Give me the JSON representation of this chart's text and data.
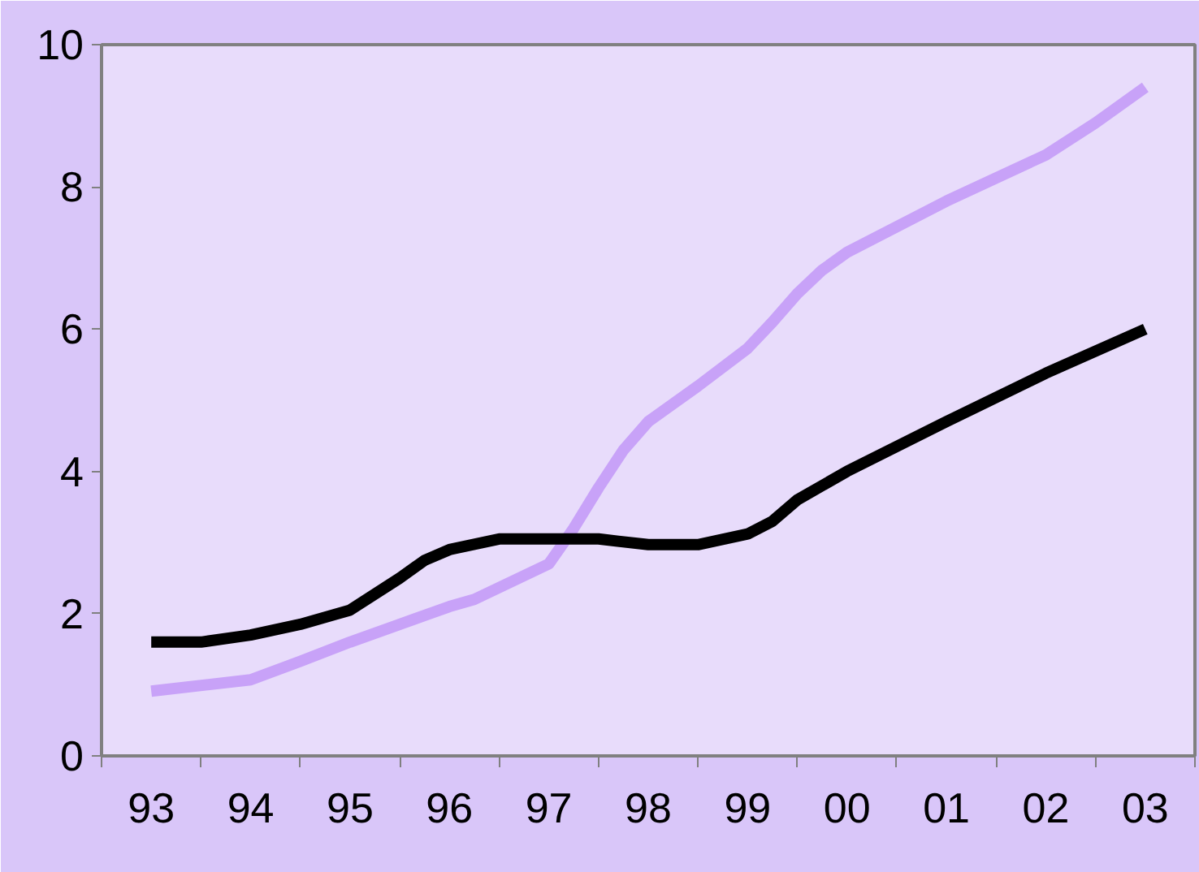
{
  "chart_data": {
    "type": "line",
    "x": [
      1993,
      1993.5,
      1994,
      1994.5,
      1995,
      1995.5,
      1995.75,
      1996,
      1996.5,
      1997,
      1997.5,
      1998,
      1998.5,
      1999,
      1999.25,
      1999.5,
      2000,
      2001,
      2002,
      2003
    ],
    "series": [
      {
        "color": "#c8a2f8",
        "x": [
          1993,
          1994,
          1994.5,
          1995,
          1996,
          1996.25,
          1997,
          1997.25,
          1997.5,
          1997.75,
          1998,
          1998.5,
          1999,
          1999.25,
          1999.5,
          1999.75,
          2000,
          2000.25,
          2001,
          2002,
          2002.5,
          2003
        ],
        "values": [
          0.91,
          1.07,
          1.33,
          1.6,
          2.1,
          2.2,
          2.7,
          3.2,
          3.77,
          4.3,
          4.7,
          5.2,
          5.73,
          6.1,
          6.5,
          6.83,
          7.08,
          7.26,
          7.8,
          8.45,
          8.9,
          9.4
        ]
      },
      {
        "color": "#000000",
        "values": [
          1.6,
          1.6,
          1.7,
          1.85,
          2.05,
          2.5,
          2.75,
          2.9,
          3.05,
          3.05,
          3.05,
          2.97,
          2.97,
          3.12,
          3.3,
          3.6,
          4.0,
          4.7,
          5.38,
          6.0
        ]
      }
    ],
    "xlim": [
      1992.5,
      2003.5
    ],
    "xticks": [
      {
        "value": 1993,
        "label": "93"
      },
      {
        "value": 1994,
        "label": "94"
      },
      {
        "value": 1995,
        "label": "95"
      },
      {
        "value": 1996,
        "label": "96"
      },
      {
        "value": 1997,
        "label": "97"
      },
      {
        "value": 1998,
        "label": "98"
      },
      {
        "value": 1999,
        "label": "99"
      },
      {
        "value": 2000,
        "label": "00"
      },
      {
        "value": 2001,
        "label": "01"
      },
      {
        "value": 2002,
        "label": "02"
      },
      {
        "value": 2003,
        "label": "03"
      },
      {
        "value": 1992.5,
        "label": null
      },
      {
        "value": 1993.5,
        "label": null
      },
      {
        "value": 1994.5,
        "label": null
      },
      {
        "value": 1995.5,
        "label": null
      },
      {
        "value": 1996.5,
        "label": null
      },
      {
        "value": 1997.5,
        "label": null
      },
      {
        "value": 1998.5,
        "label": null
      },
      {
        "value": 1999.5,
        "label": null
      },
      {
        "value": 2000.5,
        "label": null
      },
      {
        "value": 2001.5,
        "label": null
      },
      {
        "value": 2002.5,
        "label": null
      },
      {
        "value": 2003.5,
        "label": null
      }
    ],
    "ylim": [
      0,
      10
    ],
    "yticks": [
      0,
      2,
      4,
      6,
      8,
      10
    ],
    "grid": false,
    "marker": "none",
    "line_style": "solid"
  }
}
